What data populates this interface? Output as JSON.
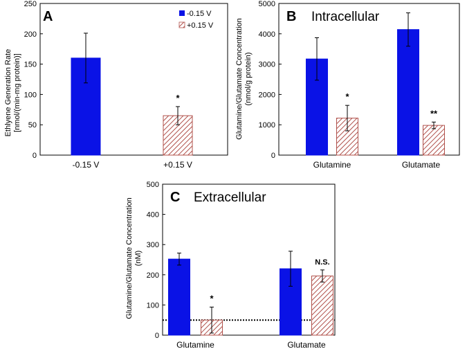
{
  "colors": {
    "neg": "#0a12e6",
    "pos_stroke": "#b0504a",
    "pos_fill": "#ffffff",
    "axis": "#000000"
  },
  "chart_data": [
    {
      "id": "A",
      "type": "bar",
      "panel_letter": "A",
      "title": "",
      "ylabel_lines": [
        "Ethlyene Generation Rate",
        "[nmol/(min-mg protein)]"
      ],
      "xlabel": "",
      "ylim": [
        0,
        250
      ],
      "yticks": [
        0,
        50,
        100,
        150,
        200,
        250
      ],
      "categories": [
        "-0.15 V",
        "+0.15 V"
      ],
      "legend": {
        "placement": "top-right",
        "entries": [
          "-0.15 V",
          "+0.15 V"
        ]
      },
      "series": [
        {
          "name": "-0.15 V",
          "style": "solid",
          "values": [
            160,
            null
          ],
          "errors": [
            41,
            null
          ]
        },
        {
          "name": "+0.15 V",
          "style": "hatched",
          "values": [
            null,
            65
          ],
          "errors": [
            null,
            15
          ]
        }
      ],
      "annotations": [
        {
          "category": 1,
          "series": 1,
          "text": "*"
        }
      ]
    },
    {
      "id": "B",
      "type": "bar",
      "panel_letter": "B",
      "title": "Intracellular",
      "ylabel_lines": [
        "Glutamine/Glutamate Concentration",
        "(nmol/g protein)"
      ],
      "xlabel": "",
      "ylim": [
        0,
        5000
      ],
      "yticks": [
        0,
        1000,
        2000,
        3000,
        4000,
        5000
      ],
      "categories": [
        "Glutamine",
        "Glutamate"
      ],
      "series": [
        {
          "name": "-0.15 V",
          "style": "solid",
          "values": [
            3170,
            4140
          ],
          "errors": [
            700,
            550
          ]
        },
        {
          "name": "+0.15 V",
          "style": "hatched",
          "values": [
            1220,
            980
          ],
          "errors": [
            420,
            110
          ]
        }
      ],
      "annotations": [
        {
          "category": 0,
          "series": 1,
          "text": "*"
        },
        {
          "category": 1,
          "series": 1,
          "text": "**"
        }
      ]
    },
    {
      "id": "C",
      "type": "bar",
      "panel_letter": "C",
      "title": "Extracellular",
      "ylabel_lines": [
        "Glutamine/Glutamate Concentration",
        "(nM)"
      ],
      "xlabel": "",
      "ylim": [
        0,
        500
      ],
      "yticks": [
        0,
        100,
        200,
        300,
        400,
        500
      ],
      "categories": [
        "Glutamine",
        "Glutamate"
      ],
      "series": [
        {
          "name": "-0.15 V",
          "style": "solid",
          "values": [
            252,
            220
          ],
          "errors": [
            20,
            58
          ]
        },
        {
          "name": "+0.15 V",
          "style": "hatched",
          "values": [
            50,
            196
          ],
          "errors": [
            43,
            20
          ]
        }
      ],
      "reference_line": {
        "value": 50,
        "style": "dotted"
      },
      "annotations": [
        {
          "category": 0,
          "series": 1,
          "text": "*"
        },
        {
          "category": 1,
          "series": 1,
          "text": "N.S.",
          "bold": true
        }
      ]
    }
  ]
}
